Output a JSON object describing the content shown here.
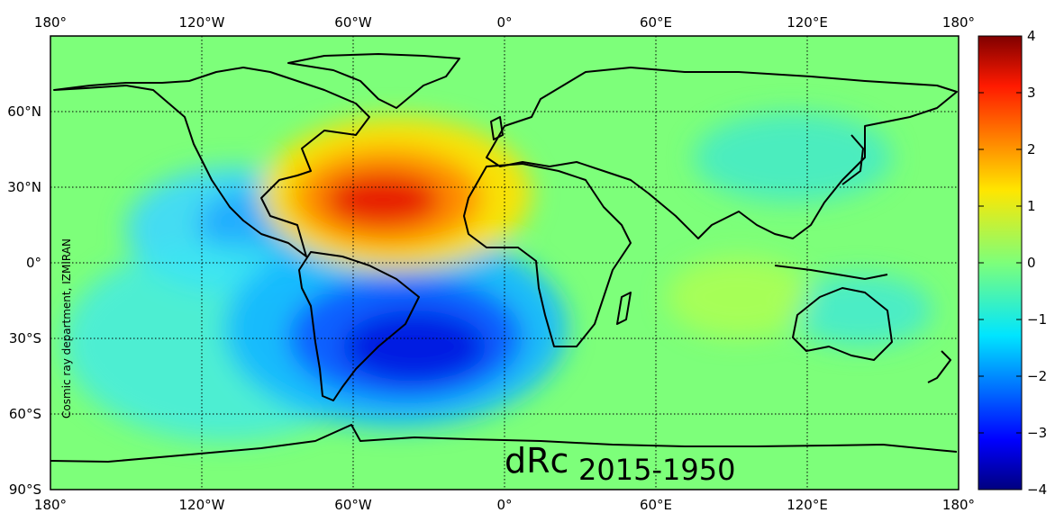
{
  "map": {
    "title_main": "dRc",
    "title_sub": "2015-1950",
    "credit": "Cosmic ray department, IZMIRAN",
    "colors": {
      "background_field": "#7dff7a",
      "coastline": "#000000",
      "grid": "#000000"
    },
    "lon_ticks_top": [
      "180°",
      "120°W",
      "60°W",
      "0°",
      "60°E",
      "120°E",
      "180°"
    ],
    "lon_ticks_bottom": [
      "180°",
      "120°W",
      "60°W",
      "0°",
      "60°E",
      "120°E",
      "180°"
    ],
    "lat_ticks": [
      "60°N",
      "30°N",
      "0°",
      "30°S",
      "60°S",
      "90°S"
    ]
  },
  "colorbar": {
    "ticks": [
      "4",
      "3",
      "2",
      "1",
      "0",
      "−1",
      "−2",
      "−3",
      "−4"
    ],
    "colormap": "jet",
    "range": [
      -4,
      4
    ]
  },
  "anomalies": [
    {
      "name": "north-atlantic-positive",
      "lon": -45,
      "lat": 27,
      "value": 3.8
    },
    {
      "name": "south-atlantic-negative",
      "lon": -45,
      "lat": -35,
      "value": -2.6
    },
    {
      "name": "central-america-negative",
      "lon": -110,
      "lat": 15,
      "value": -1.4
    },
    {
      "name": "south-pacific-negative",
      "lon": -100,
      "lat": -30,
      "value": -1.0
    },
    {
      "name": "east-asia-negative",
      "lon": 105,
      "lat": 40,
      "value": -0.8
    },
    {
      "name": "australia-negative",
      "lon": 140,
      "lat": -20,
      "value": -0.8
    },
    {
      "name": "indian-ocean-positive",
      "lon": 90,
      "lat": -15,
      "value": 0.6
    }
  ]
}
